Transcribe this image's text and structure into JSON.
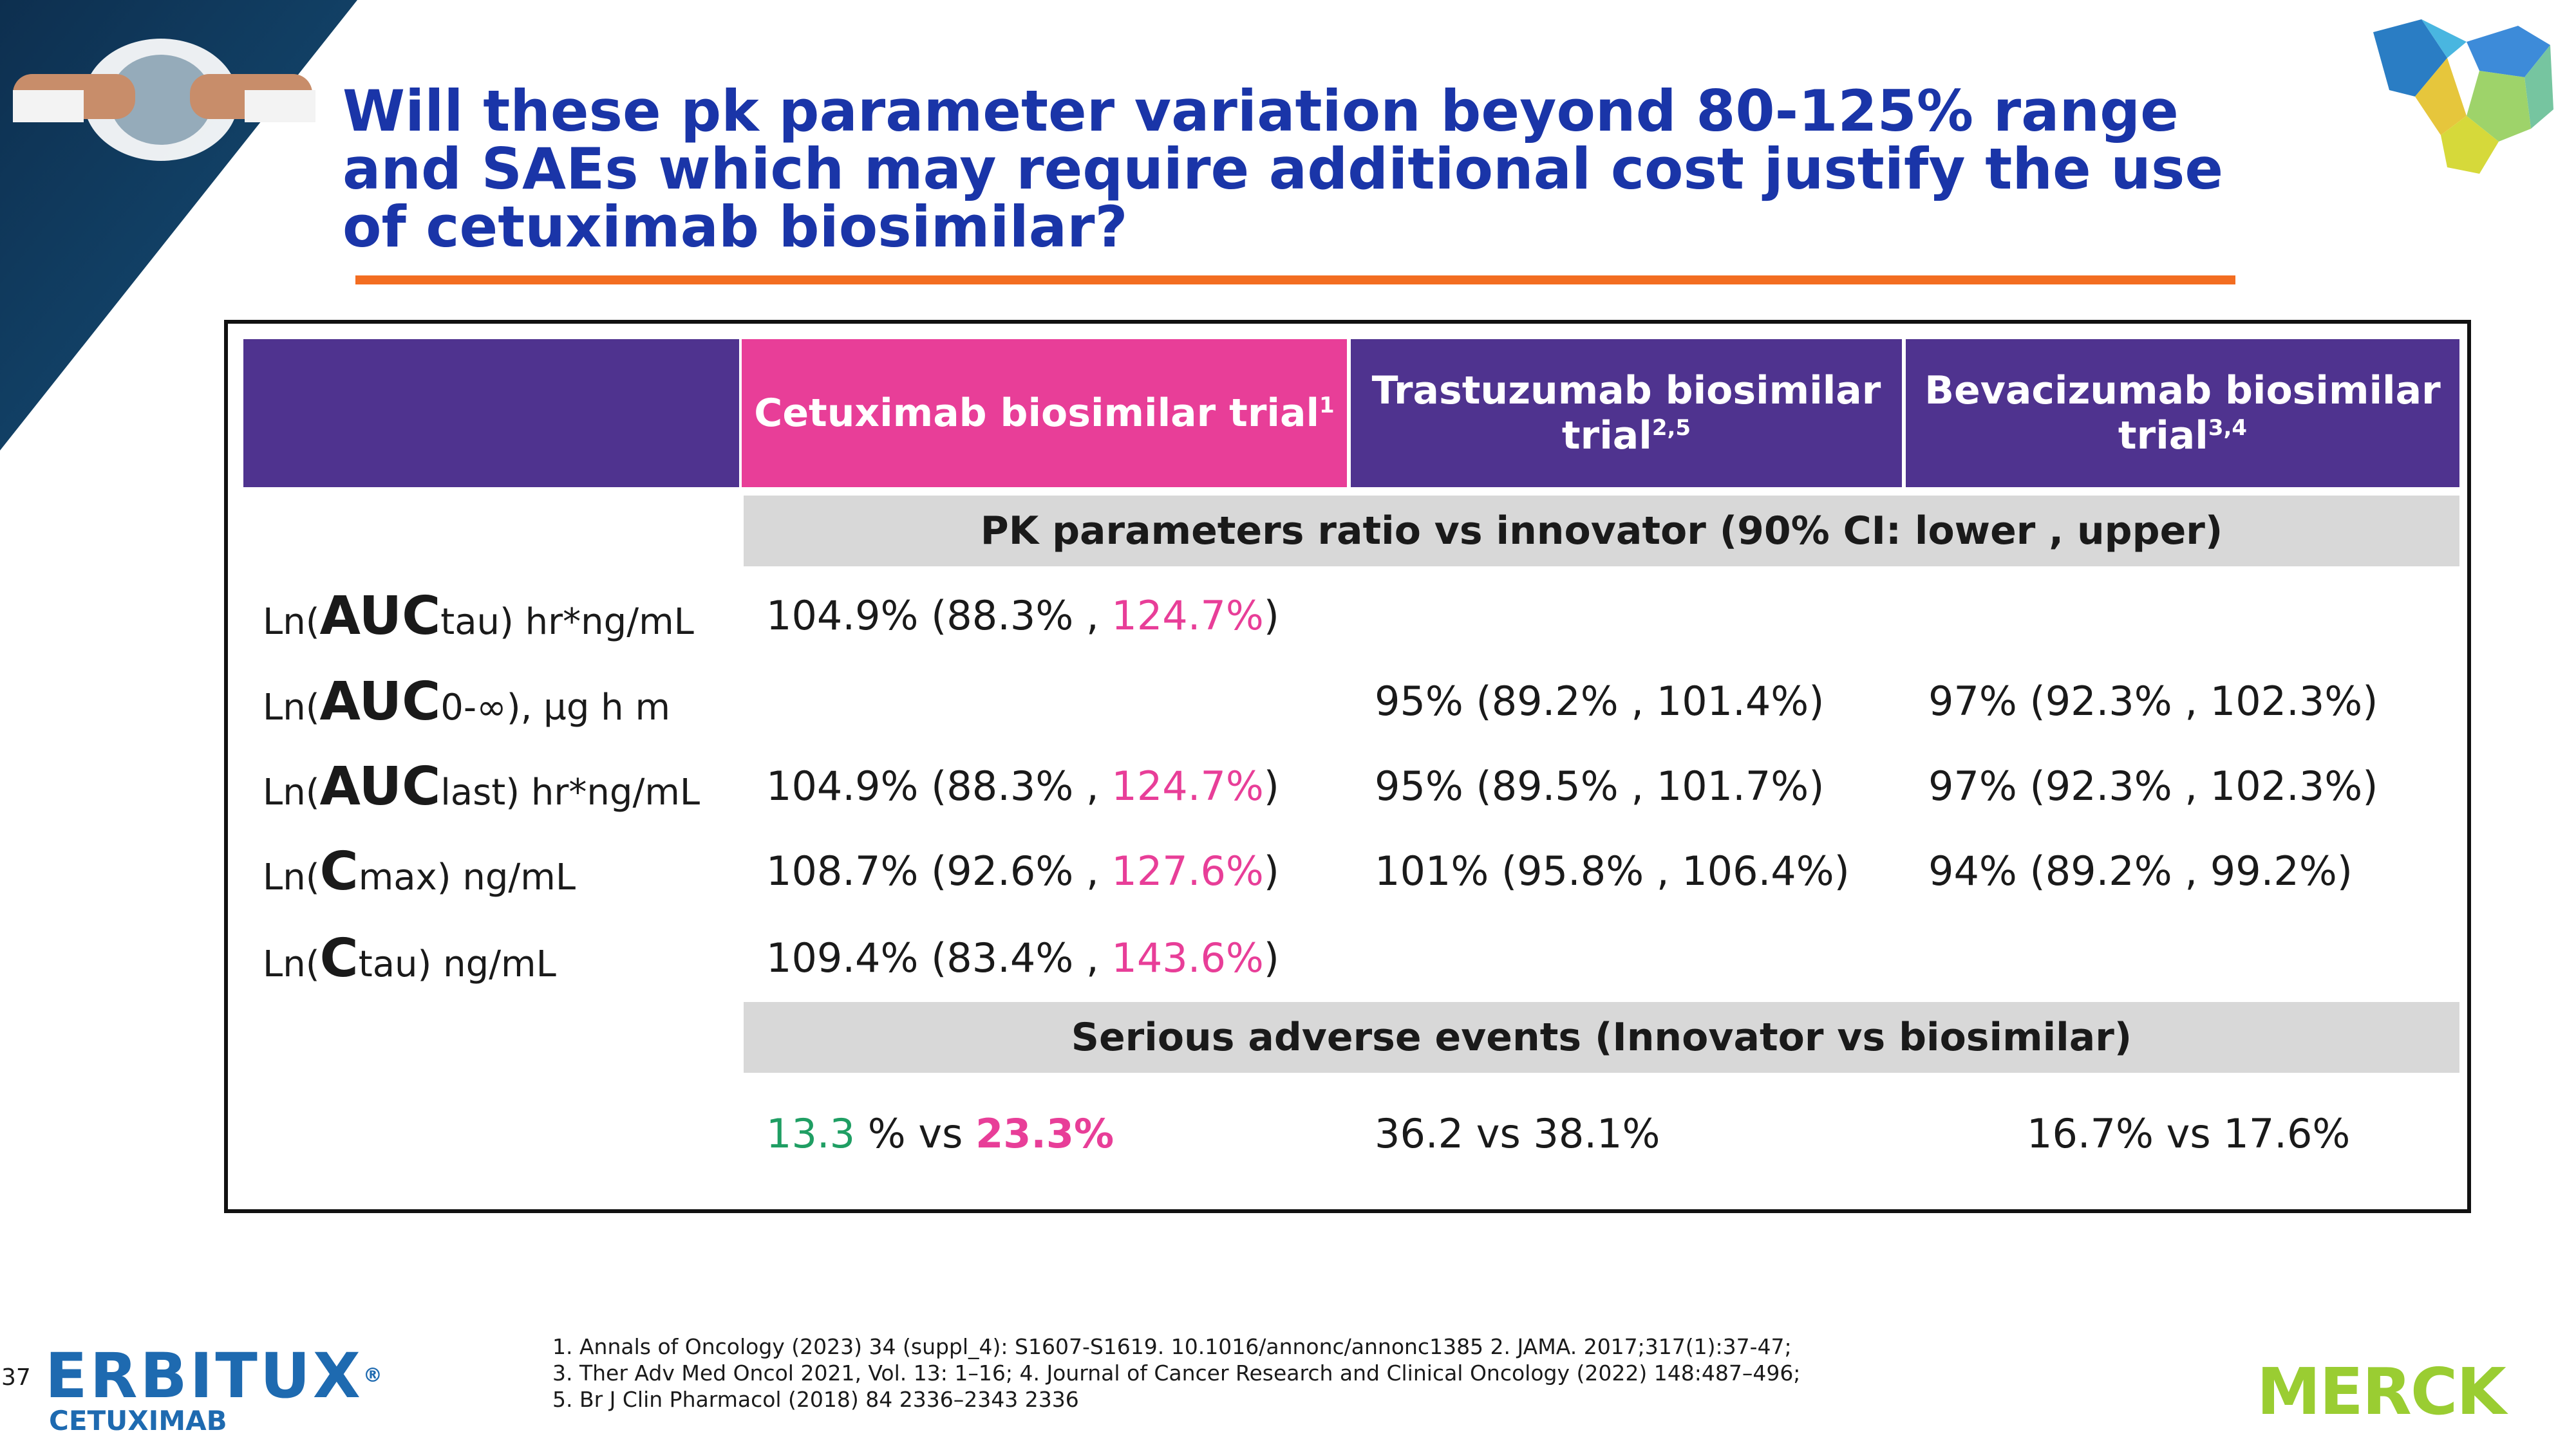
{
  "title": "Will these pk parameter variation beyond 80-125% range and SAEs which may require additional cost justify the use of cetuximab biosimilar?",
  "table": {
    "headers": [
      {
        "label": "",
        "sup": ""
      },
      {
        "label": "Cetuximab biosimilar trial",
        "sup": "1"
      },
      {
        "label": "Trastuzumab biosimilar trial",
        "sup": "2,5"
      },
      {
        "label": "Bevacizumab biosimilar trial",
        "sup": "3,4"
      }
    ],
    "pk_band": "PK parameters ratio vs innovator (90% CI: lower , upper)",
    "rows": [
      {
        "label_pre": "Ln(",
        "label_big": "AUC",
        "label_post": "tau) hr*ng/mL",
        "cet_main": "104.9% (88.3% , ",
        "cet_pink": "124.7%",
        "cet_end": ")",
        "tra": "",
        "bev": ""
      },
      {
        "label_pre": "Ln(",
        "label_big": "AUC",
        "label_post": "0-∞), µg h m",
        "cet_main": "",
        "cet_pink": "",
        "cet_end": "",
        "tra": "95% (89.2% , 101.4%)",
        "bev": "97% (92.3% , 102.3%)"
      },
      {
        "label_pre": "Ln(",
        "label_big": "AUC",
        "label_post": "last) hr*ng/mL",
        "cet_main": "104.9% (88.3% , ",
        "cet_pink": "124.7%",
        "cet_end": ")",
        "tra": "95% (89.5% , 101.7%)",
        "bev": "97% (92.3% , 102.3%)"
      },
      {
        "label_pre": "Ln(",
        "label_big": "C",
        "label_post": "max) ng/mL",
        "cet_main": "108.7% (92.6% , ",
        "cet_pink": "127.6%",
        "cet_end": ")",
        "tra": "101% (95.8% , 106.4%)",
        "bev": "94% (89.2% , 99.2%)"
      },
      {
        "label_pre": "Ln(",
        "label_big": "C",
        "label_post": "tau) ng/mL",
        "cet_main": "109.4% (83.4% , ",
        "cet_pink": "143.6%",
        "cet_end": ")",
        "tra": "",
        "bev": ""
      }
    ],
    "sae_band": "Serious adverse events (Innovator vs biosimilar)",
    "sae": {
      "cet_green": "13.3",
      "cet_mid": " % vs ",
      "cet_pink": "23.3%",
      "tra": "36.2 vs 38.1%",
      "bev": "16.7% vs 17.6%"
    }
  },
  "references": [
    "1. Annals of Oncology (2023) 34 (suppl_4): S1607-S1619. 10.1016/annonc/annonc1385 2. JAMA. 2017;317(1):37-47;",
    "3. Ther Adv Med Oncol 2021, Vol. 13: 1–16; 4. Journal of Cancer Research and Clinical Oncology (2022) 148:487–496;",
    "5. Br J Clin Pharmacol (2018) 84 2336–2343 2336"
  ],
  "page_number": "37",
  "logos": {
    "erbitux_word": "ERBITUX",
    "erbitux_reg": "®",
    "erbitux_sub": "CETUXIMAB",
    "merck": "MERCK"
  },
  "colors": {
    "title_blue": "#1a35a8",
    "header_purple": "#4f338f",
    "header_pink": "#e83e98",
    "accent_orange": "#f36d21",
    "band_grey": "#d8d8d8",
    "green": "#1f9e63",
    "merck_green": "#9acd32",
    "erbitux_blue": "#1e6ab0"
  }
}
